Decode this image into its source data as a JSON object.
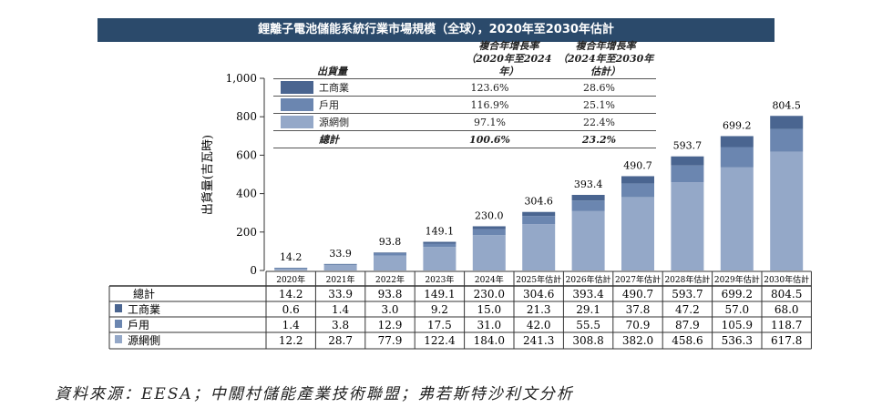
{
  "title": "鋰離子電池儲能系統行業市場規模（全球），2020年至2030年估計",
  "legend": {
    "header": "出貨量",
    "col1": [
      "複合年增長率",
      "（2020年至2024年）"
    ],
    "col2": [
      "複合年增長率",
      "（2024年至2030年估計）"
    ],
    "rows": [
      {
        "label": "工商業",
        "c1": "123.6%",
        "c2": "28.6%",
        "color": "#4a6590"
      },
      {
        "label": "戶用",
        "c1": "116.9%",
        "c2": "25.1%",
        "color": "#6b86b0"
      },
      {
        "label": "源網側",
        "c1": "97.1%",
        "c2": "22.4%",
        "color": "#94a8c8"
      },
      {
        "label": "總計",
        "c1": "100.6%",
        "c2": "23.2%",
        "color": ""
      }
    ]
  },
  "chart_data": {
    "type": "bar",
    "stacked": true,
    "ylabel": "出貨量(吉瓦時)",
    "ylim": [
      0,
      1000
    ],
    "yticks": [
      "0",
      "200",
      "400",
      "600",
      "800",
      "1,000"
    ],
    "categories": [
      "2020年",
      "2021年",
      "2022年",
      "2023年",
      "2024年",
      "2025年估計",
      "2026年估計",
      "2027年估計",
      "2028年估計",
      "2029年估計",
      "2030年估計"
    ],
    "totals_label": "總計",
    "totals": [
      "14.2",
      "33.9",
      "93.8",
      "149.1",
      "230.0",
      "304.6",
      "393.4",
      "490.7",
      "593.7",
      "699.2",
      "804.5"
    ],
    "series": [
      {
        "name": "源網側",
        "color": "#94a8c8",
        "values": [
          12.2,
          28.7,
          77.9,
          122.4,
          184.0,
          241.3,
          308.8,
          382.0,
          458.6,
          536.3,
          617.8
        ]
      },
      {
        "name": "戶用",
        "color": "#6b86b0",
        "values": [
          1.4,
          3.8,
          12.9,
          17.5,
          31.0,
          42.0,
          55.5,
          70.9,
          87.9,
          105.9,
          118.7
        ]
      },
      {
        "name": "工商業",
        "color": "#4a6590",
        "values": [
          0.6,
          1.4,
          3.0,
          9.2,
          15.0,
          21.3,
          29.1,
          37.8,
          47.2,
          57.0,
          68.0
        ]
      }
    ]
  },
  "source": "資料來源：EESA；中關村儲能產業技術聯盟；弗若斯特沙利文分析"
}
